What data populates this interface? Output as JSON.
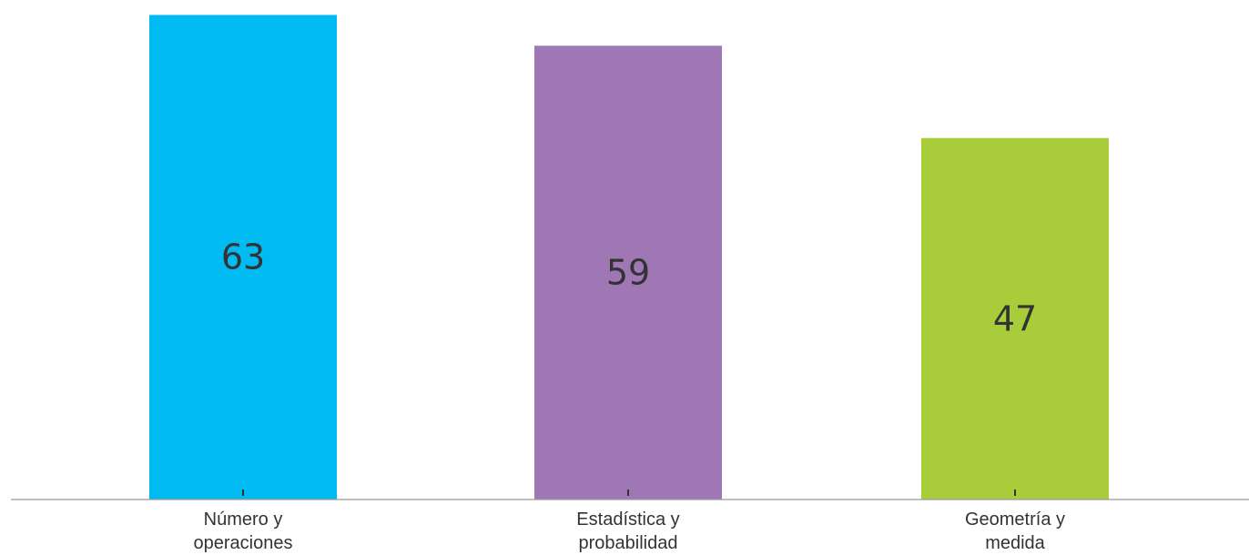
{
  "chart_data": {
    "type": "bar",
    "categories": [
      [
        "Número y",
        "operaciones"
      ],
      [
        "Estadística y",
        "probabilidad"
      ],
      [
        "Geometría y",
        "medida"
      ]
    ],
    "values": [
      63,
      59,
      47
    ],
    "colors": [
      "#00baf2",
      "#9e77b4",
      "#a8cc3a"
    ],
    "ylim": [
      0,
      64
    ],
    "grid": false,
    "legend": "none",
    "axis_color": "#999999",
    "title": "",
    "xlabel": "",
    "ylabel": ""
  }
}
